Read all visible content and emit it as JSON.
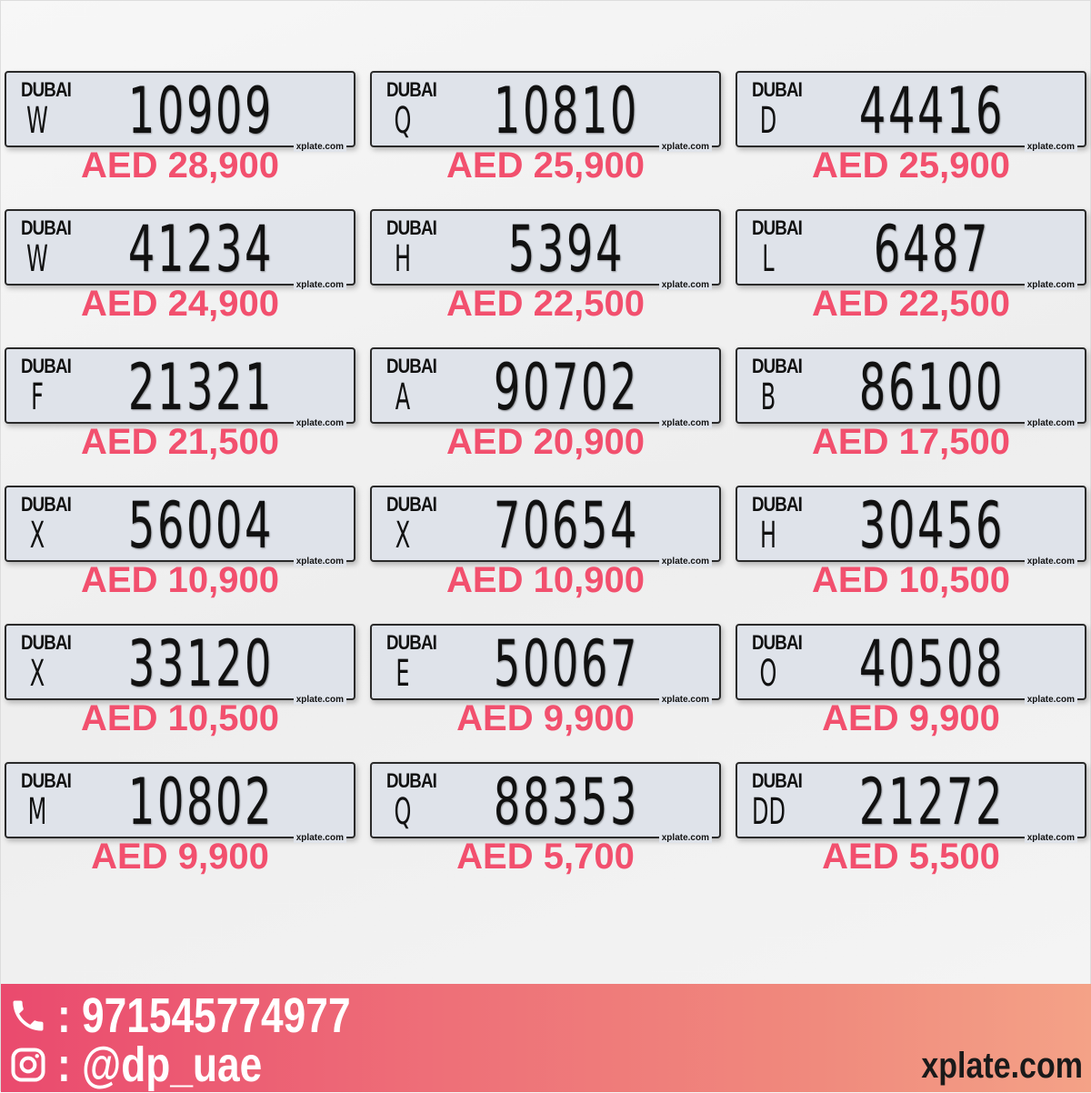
{
  "plates": [
    {
      "emirate": "DUBAI",
      "code": "W",
      "number": "10909",
      "watermark": "xplate.com",
      "price": "AED 28,900"
    },
    {
      "emirate": "DUBAI",
      "code": "Q",
      "number": "10810",
      "watermark": "xplate.com",
      "price": "AED 25,900"
    },
    {
      "emirate": "DUBAI",
      "code": "D",
      "number": "44416",
      "watermark": "xplate.com",
      "price": "AED 25,900"
    },
    {
      "emirate": "DUBAI",
      "code": "W",
      "number": "41234",
      "watermark": "xplate.com",
      "price": "AED 24,900"
    },
    {
      "emirate": "DUBAI",
      "code": "H",
      "number": "5394",
      "watermark": "xplate.com",
      "price": "AED 22,500"
    },
    {
      "emirate": "DUBAI",
      "code": "L",
      "number": "6487",
      "watermark": "xplate.com",
      "price": "AED 22,500"
    },
    {
      "emirate": "DUBAI",
      "code": "F",
      "number": "21321",
      "watermark": "xplate.com",
      "price": "AED 21,500"
    },
    {
      "emirate": "DUBAI",
      "code": "A",
      "number": "90702",
      "watermark": "xplate.com",
      "price": "AED 20,900"
    },
    {
      "emirate": "DUBAI",
      "code": "B",
      "number": "86100",
      "watermark": "xplate.com",
      "price": "AED 17,500"
    },
    {
      "emirate": "DUBAI",
      "code": "X",
      "number": "56004",
      "watermark": "xplate.com",
      "price": "AED 10,900"
    },
    {
      "emirate": "DUBAI",
      "code": "X",
      "number": "70654",
      "watermark": "xplate.com",
      "price": "AED 10,900"
    },
    {
      "emirate": "DUBAI",
      "code": "H",
      "number": "30456",
      "watermark": "xplate.com",
      "price": "AED 10,500"
    },
    {
      "emirate": "DUBAI",
      "code": "X",
      "number": "33120",
      "watermark": "xplate.com",
      "price": "AED 10,500"
    },
    {
      "emirate": "DUBAI",
      "code": "E",
      "number": "50067",
      "watermark": "xplate.com",
      "price": "AED 9,900"
    },
    {
      "emirate": "DUBAI",
      "code": "O",
      "number": "40508",
      "watermark": "xplate.com",
      "price": "AED 9,900"
    },
    {
      "emirate": "DUBAI",
      "code": "M",
      "number": "10802",
      "watermark": "xplate.com",
      "price": "AED 9,900"
    },
    {
      "emirate": "DUBAI",
      "code": "Q",
      "number": "88353",
      "watermark": "xplate.com",
      "price": "AED 5,700"
    },
    {
      "emirate": "DUBAI",
      "code": "DD",
      "number": "21272",
      "watermark": "xplate.com",
      "price": "AED 5,500"
    }
  ],
  "footer": {
    "phone": ": 971545774977",
    "instagram": ": @dp_uae",
    "site": "xplate.com",
    "phone_icon": "phone-icon",
    "instagram_icon": "instagram-icon"
  },
  "colors": {
    "price": "#f2506e",
    "footer_start": "#ea4a6e",
    "footer_end": "#f4a287"
  }
}
